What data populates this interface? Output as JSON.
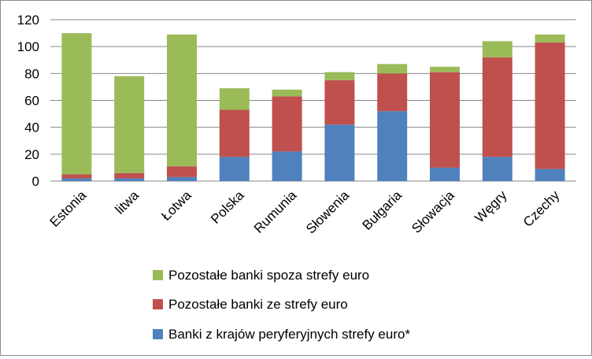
{
  "chart_data": {
    "type": "bar",
    "stacked": true,
    "categories": [
      "Estonia",
      "litwa",
      "Łotwa",
      "Polska",
      "Rumunia",
      "Słowenia",
      "Bułgaria",
      "Słowacja",
      "Węgry",
      "Czechy"
    ],
    "series": [
      {
        "name": "Banki z krajów peryferyjnych strefy euro*",
        "color": "#4f81bd",
        "values": [
          2,
          2,
          3,
          18,
          22,
          42,
          52,
          10,
          18,
          9
        ]
      },
      {
        "name": "Pozostałe banki ze strefy euro",
        "color": "#c0504d",
        "values": [
          3,
          4,
          8,
          35,
          41,
          33,
          28,
          71,
          74,
          94
        ]
      },
      {
        "name": "Pozostałe banki spoza strefy euro",
        "color": "#9bbb59",
        "values": [
          105,
          72,
          98,
          16,
          5,
          6,
          7,
          4,
          12,
          6
        ]
      }
    ],
    "ylim": [
      0,
      120
    ],
    "yticks": [
      "0",
      "20",
      "40",
      "60",
      "80",
      "100",
      "120"
    ],
    "grid": true,
    "legend_position": "bottom",
    "legend_order": [
      2,
      1,
      0
    ]
  }
}
